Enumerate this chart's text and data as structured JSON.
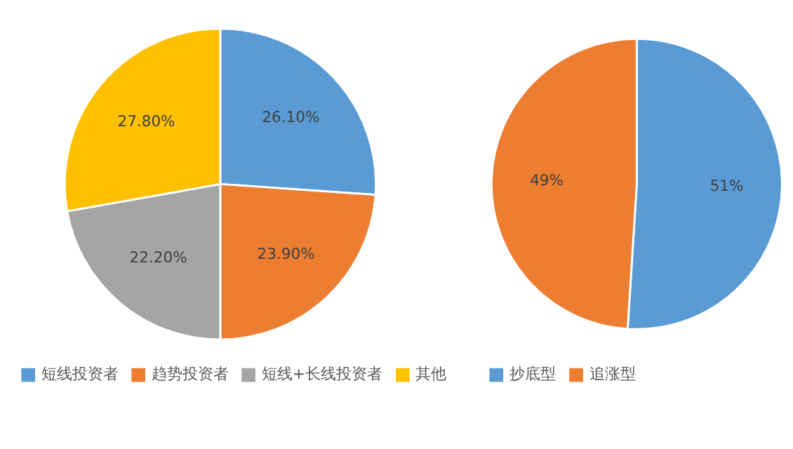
{
  "chart_data": [
    {
      "type": "pie",
      "categories": [
        "短线投资者",
        "趋势投资者",
        "短线+长线投资者",
        "其他"
      ],
      "values": [
        26.1,
        23.9,
        22.2,
        27.8
      ],
      "colors": [
        "#5b9bd5",
        "#ed7d31",
        "#a5a5a5",
        "#ffc000"
      ],
      "value_labels": [
        "26.10%",
        "23.90%",
        "22.20%",
        "27.80%"
      ],
      "legend": "bottom"
    },
    {
      "type": "pie",
      "categories": [
        "抄底型",
        "追涨型"
      ],
      "values": [
        51,
        49
      ],
      "colors": [
        "#5b9bd5",
        "#ed7d31"
      ],
      "value_labels": [
        "51%",
        "49%"
      ],
      "legend": "bottom"
    }
  ]
}
